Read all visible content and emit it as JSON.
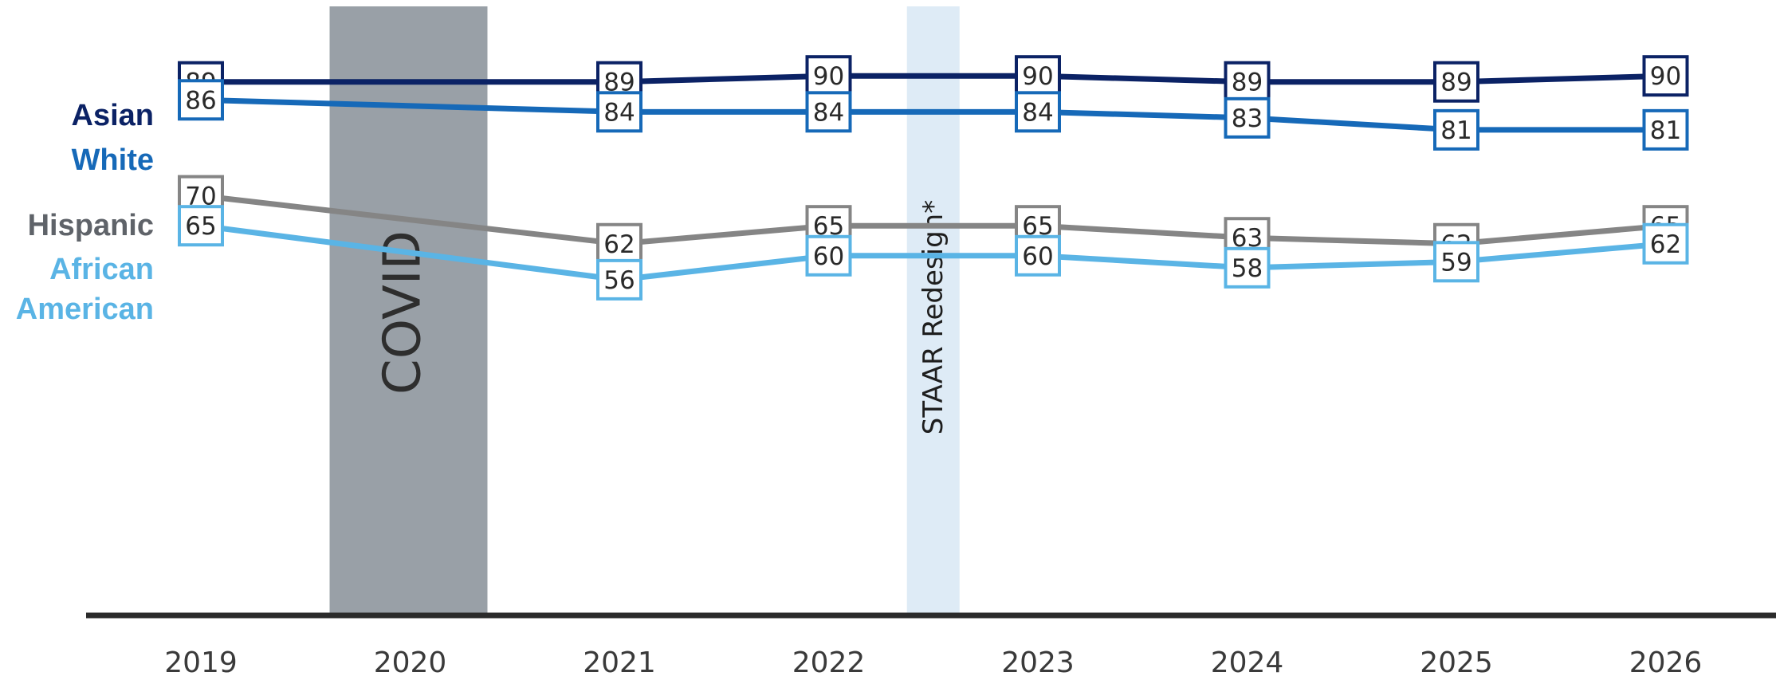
{
  "chart_data": {
    "type": "line",
    "categories": [
      "2019",
      "2020",
      "2021",
      "2022",
      "2023",
      "2024",
      "2025",
      "2026"
    ],
    "ylim": [
      0,
      100
    ],
    "grid": false,
    "legend": "left inline labels",
    "series": [
      {
        "name": "Asian",
        "label_lines": [
          "Asian"
        ],
        "color": "#0b2265",
        "values": [
          89,
          null,
          89,
          90,
          90,
          89,
          89,
          90
        ]
      },
      {
        "name": "White",
        "label_lines": [
          "White"
        ],
        "color": "#1669b8",
        "values": [
          86,
          null,
          84,
          84,
          84,
          83,
          81,
          81
        ]
      },
      {
        "name": "Hispanic",
        "label_lines": [
          "Hispanic"
        ],
        "color": "#5f6369",
        "line_color": "#858585",
        "values": [
          70,
          null,
          62,
          65,
          65,
          63,
          62,
          65
        ]
      },
      {
        "name": "African American",
        "label_lines": [
          "African",
          "American"
        ],
        "color": "#5ab4e5",
        "values": [
          65,
          null,
          56,
          60,
          60,
          58,
          59,
          62
        ]
      }
    ],
    "annotations": [
      {
        "text": "COVID",
        "category": "2020",
        "color": "#99a0a7",
        "text_color": "#2e2e2e"
      },
      {
        "text": "STAAR Redesign*",
        "between": [
          "2022",
          "2023"
        ],
        "color": "#deebf6",
        "text_color": "#1e1e1e"
      }
    ]
  }
}
